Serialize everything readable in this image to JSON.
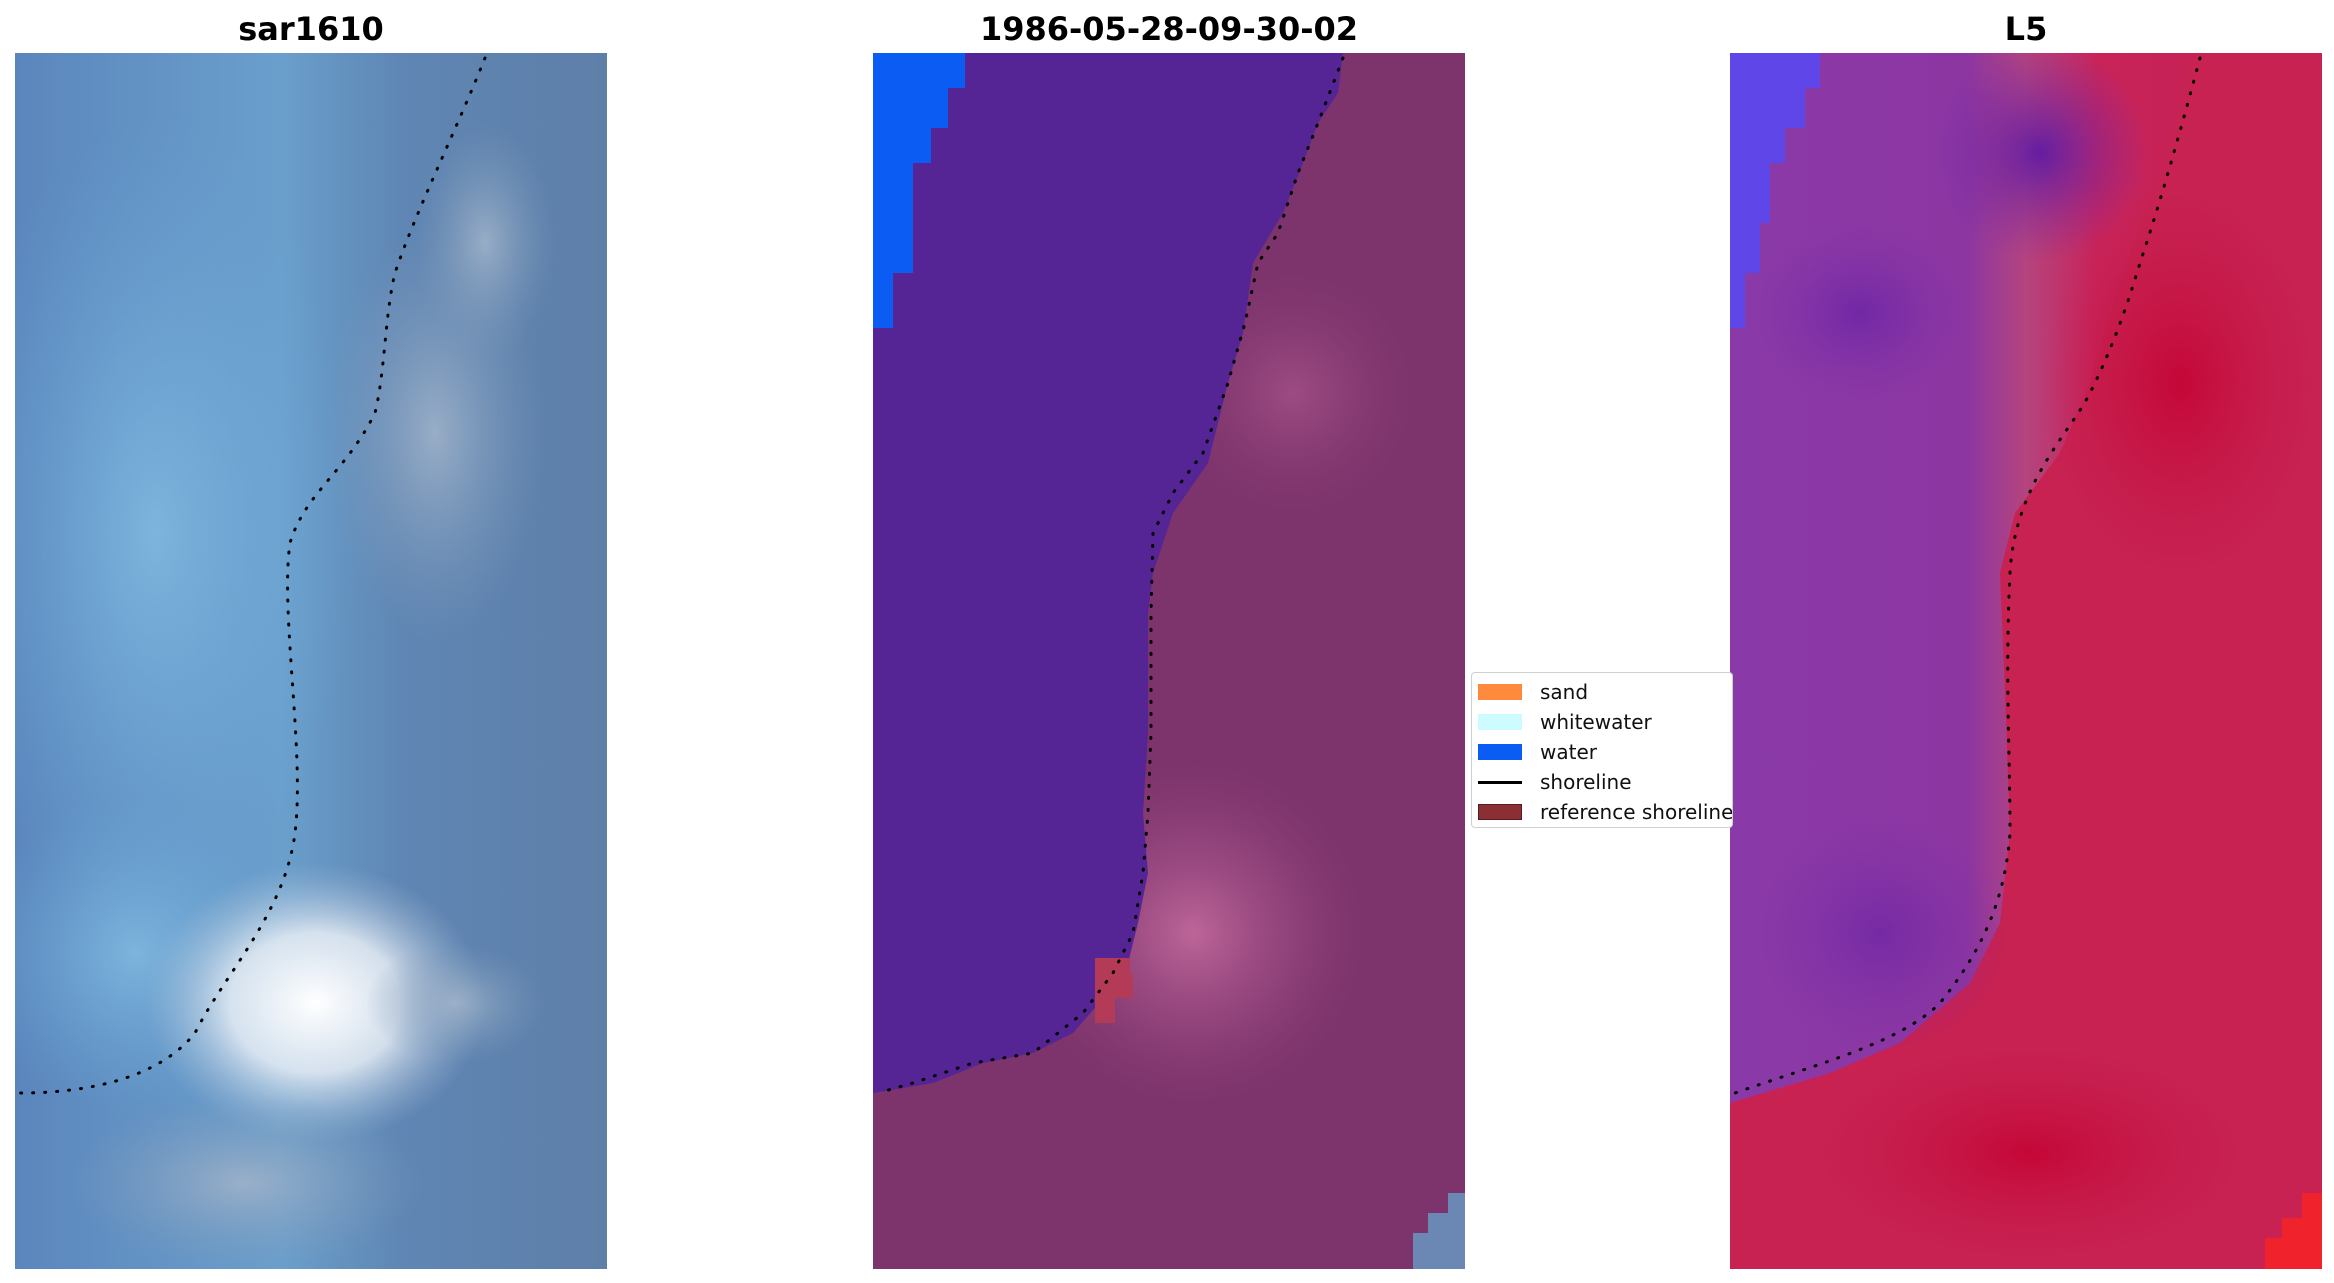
{
  "panels": [
    {
      "title": "sar1610"
    },
    {
      "title": "1986-05-28-09-30-02"
    },
    {
      "title": "L5"
    }
  ],
  "legend": {
    "items": [
      {
        "label": "sand",
        "color": "#ff8a3d",
        "kind": "patch"
      },
      {
        "label": "whitewater",
        "color": "#ccfcff",
        "kind": "patch"
      },
      {
        "label": "water",
        "color": "#0b5cf2",
        "kind": "patch"
      },
      {
        "label": "shoreline",
        "color": "#000000",
        "kind": "line"
      },
      {
        "label": "reference shoreline",
        "color": "#8b2f35",
        "kind": "patch"
      }
    ]
  },
  "colors": {
    "water_class": "#552495",
    "land_overlay": "#7d336b",
    "index_water": "#7a2aa8",
    "index_land": "#c51846"
  }
}
